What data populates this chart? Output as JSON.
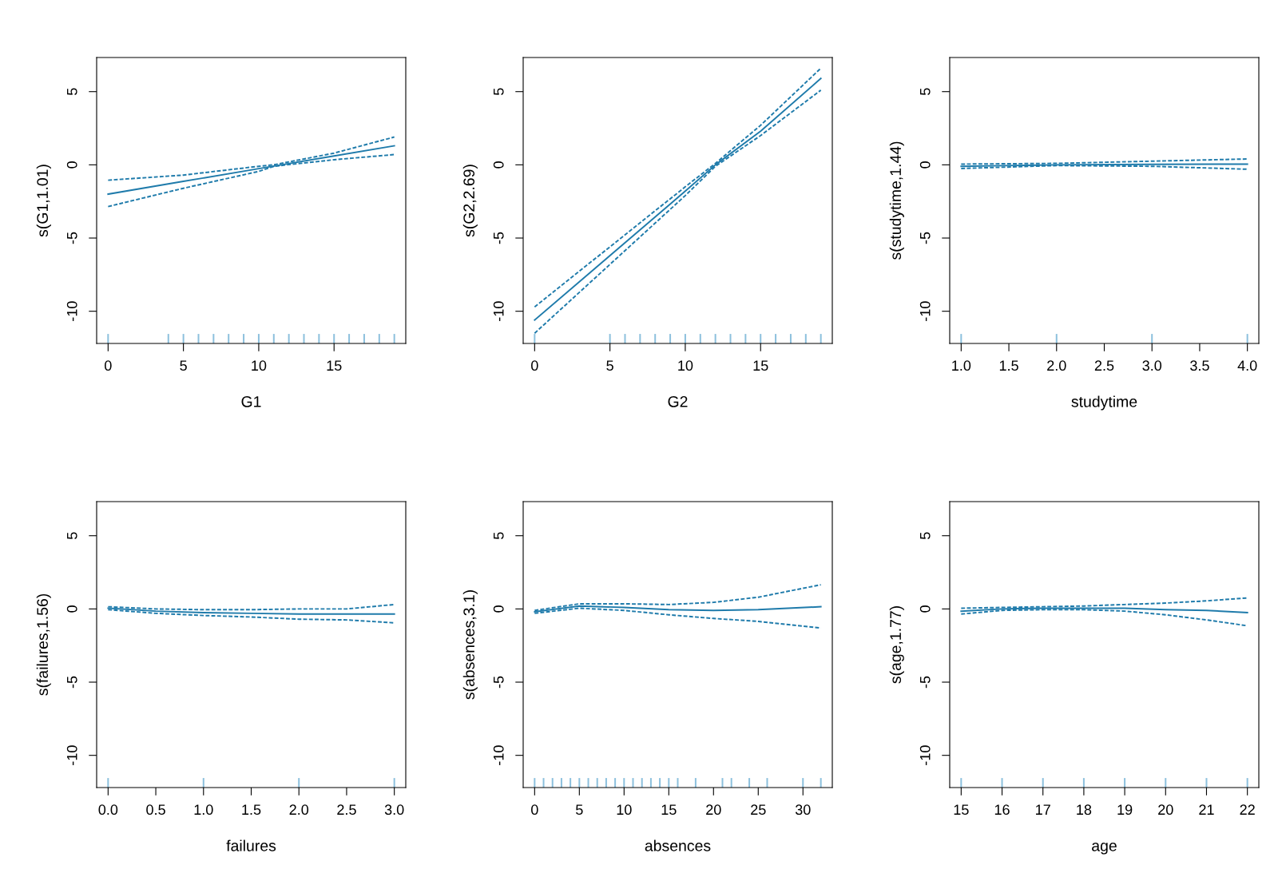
{
  "chart_data": [
    {
      "type": "line",
      "xlabel": "G1",
      "ylabel": "s(G1,1.01)",
      "xlim": [
        -0.76,
        19.76
      ],
      "ylim": [
        -12.2,
        7.33
      ],
      "xticks": [
        0,
        5,
        10,
        15
      ],
      "yticks": [
        -10,
        -5,
        0,
        5
      ],
      "grid": false,
      "legend": false,
      "series": [
        {
          "color": "#1f7bab",
          "line_style": "solid",
          "x": [
            0,
            5,
            10,
            15,
            19
          ],
          "values": [
            -2.0,
            -1.13,
            -0.26,
            0.61,
            1.3
          ]
        },
        {
          "color": "#1f7bab",
          "line_style": "dashed",
          "x": [
            0,
            5,
            10,
            11,
            15,
            19
          ],
          "values": [
            -1.05,
            -0.7,
            -0.1,
            0.0,
            0.8,
            1.9
          ]
        },
        {
          "color": "#1f7bab",
          "line_style": "dashed",
          "x": [
            0,
            5,
            10,
            11,
            15,
            19
          ],
          "values": [
            -2.85,
            -1.6,
            -0.45,
            -0.1,
            0.35,
            0.7
          ]
        },
        {
          "type": "bar",
          "color": "#8cc0dd",
          "x": [
            0,
            4,
            5,
            6,
            7,
            8,
            9,
            10,
            11,
            12,
            13,
            14,
            15,
            16,
            17,
            18,
            19
          ],
          "base": [
            -12.2,
            -12.2,
            -12.2,
            -12.2,
            -12.2,
            -12.2,
            -12.2,
            -12.2,
            -12.2,
            -12.2,
            -12.2,
            -12.2,
            -12.2,
            -12.2,
            -12.2,
            -12.2,
            -12.2
          ],
          "values": [
            0.65,
            0.65,
            0.65,
            0.65,
            0.65,
            0.65,
            0.65,
            0.65,
            0.65,
            0.65,
            0.65,
            0.65,
            0.65,
            0.65,
            0.65,
            0.65,
            0.65
          ]
        }
      ]
    },
    {
      "type": "line",
      "xlabel": "G2",
      "ylabel": "s(G2,2.69)",
      "xlim": [
        -0.76,
        19.76
      ],
      "ylim": [
        -12.2,
        7.33
      ],
      "xticks": [
        0,
        5,
        10,
        15
      ],
      "yticks": [
        -10,
        -5,
        0,
        5
      ],
      "grid": false,
      "legend": false,
      "series": [
        {
          "color": "#1f7bab",
          "line_style": "solid",
          "x": [
            0,
            5,
            10,
            12,
            15,
            19
          ],
          "values": [
            -10.6,
            -6.2,
            -1.8,
            0.0,
            2.3,
            5.9
          ]
        },
        {
          "color": "#1f7bab",
          "line_style": "dashed",
          "x": [
            0,
            5,
            10,
            12,
            15,
            19
          ],
          "values": [
            -9.7,
            -5.6,
            -1.5,
            0.1,
            2.7,
            6.6
          ]
        },
        {
          "color": "#1f7bab",
          "line_style": "dashed",
          "x": [
            0,
            5,
            10,
            12,
            15,
            19
          ],
          "values": [
            -11.5,
            -6.8,
            -2.1,
            -0.1,
            2.0,
            5.1
          ]
        },
        {
          "type": "bar",
          "color": "#8cc0dd",
          "x": [
            0,
            5,
            6,
            7,
            8,
            9,
            10,
            11,
            12,
            13,
            14,
            15,
            16,
            17,
            18,
            19
          ],
          "base": [
            -12.2,
            -12.2,
            -12.2,
            -12.2,
            -12.2,
            -12.2,
            -12.2,
            -12.2,
            -12.2,
            -12.2,
            -12.2,
            -12.2,
            -12.2,
            -12.2,
            -12.2,
            -12.2
          ],
          "values": [
            0.65,
            0.65,
            0.65,
            0.65,
            0.65,
            0.65,
            0.65,
            0.65,
            0.65,
            0.65,
            0.65,
            0.65,
            0.65,
            0.65,
            0.65,
            0.65
          ]
        }
      ]
    },
    {
      "type": "line",
      "xlabel": "studytime",
      "ylabel": "s(studytime,1.44)",
      "xlim": [
        0.88,
        4.12
      ],
      "ylim": [
        -12.2,
        7.33
      ],
      "xticks": [
        {
          "value": 1,
          "label": "1.0"
        },
        1.5,
        {
          "value": 2,
          "label": "2.0"
        },
        2.5,
        {
          "value": 3,
          "label": "3.0"
        },
        3.5,
        {
          "value": 4,
          "label": "4.0"
        }
      ],
      "yticks": [
        -10,
        -5,
        0,
        5
      ],
      "grid": false,
      "legend": false,
      "series": [
        {
          "color": "#1f7bab",
          "line_style": "solid",
          "x": [
            1,
            2,
            3,
            4
          ],
          "values": [
            -0.1,
            0.0,
            0.03,
            0.05
          ]
        },
        {
          "color": "#1f7bab",
          "line_style": "dashed",
          "x": [
            1,
            2,
            3,
            4
          ],
          "values": [
            0.05,
            0.1,
            0.25,
            0.4
          ]
        },
        {
          "color": "#1f7bab",
          "line_style": "dashed",
          "x": [
            1,
            2,
            3,
            4
          ],
          "values": [
            -0.25,
            -0.05,
            -0.1,
            -0.3
          ]
        },
        {
          "type": "bar",
          "color": "#8cc0dd",
          "x": [
            1,
            2,
            3,
            4
          ],
          "base": [
            -12.2,
            -12.2,
            -12.2,
            -12.2
          ],
          "values": [
            0.65,
            0.65,
            0.65,
            0.65
          ]
        }
      ]
    },
    {
      "type": "line",
      "xlabel": "failures",
      "ylabel": "s(failures,1.56)",
      "xlim": [
        -0.12,
        3.12
      ],
      "ylim": [
        -12.2,
        7.33
      ],
      "xticks": [
        {
          "value": 0,
          "label": "0.0"
        },
        0.5,
        {
          "value": 1,
          "label": "1.0"
        },
        1.5,
        {
          "value": 2,
          "label": "2.0"
        },
        2.5,
        {
          "value": 3,
          "label": "3.0"
        }
      ],
      "yticks": [
        -10,
        -5,
        0,
        5
      ],
      "grid": false,
      "legend": false,
      "series": [
        {
          "color": "#1f7bab",
          "line_style": "solid",
          "x": [
            0,
            0.5,
            1,
            1.5,
            2,
            2.5,
            3
          ],
          "values": [
            0.05,
            -0.15,
            -0.25,
            -0.3,
            -0.35,
            -0.35,
            -0.35
          ]
        },
        {
          "color": "#1f7bab",
          "line_style": "dashed",
          "x": [
            0,
            0.5,
            1,
            1.5,
            2,
            2.5,
            3
          ],
          "values": [
            0.15,
            0.0,
            -0.05,
            -0.05,
            0.0,
            0.0,
            0.3
          ]
        },
        {
          "color": "#1f7bab",
          "line_style": "dashed",
          "x": [
            0,
            0.5,
            1,
            1.5,
            2,
            2.5,
            3
          ],
          "values": [
            -0.05,
            -0.3,
            -0.45,
            -0.55,
            -0.7,
            -0.75,
            -0.95
          ]
        },
        {
          "type": "bar",
          "color": "#8cc0dd",
          "x": [
            0,
            1,
            2,
            3
          ],
          "base": [
            -12.2,
            -12.2,
            -12.2,
            -12.2
          ],
          "values": [
            0.65,
            0.65,
            0.65,
            0.65
          ]
        }
      ]
    },
    {
      "type": "line",
      "xlabel": "absences",
      "ylabel": "s(absences,3.1)",
      "xlim": [
        -1.28,
        33.28
      ],
      "ylim": [
        -12.2,
        7.33
      ],
      "xticks": [
        0,
        5,
        10,
        15,
        20,
        25,
        30
      ],
      "yticks": [
        -10,
        -5,
        0,
        5
      ],
      "grid": false,
      "legend": false,
      "series": [
        {
          "color": "#1f7bab",
          "line_style": "solid",
          "x": [
            0,
            5,
            10,
            15,
            20,
            25,
            32
          ],
          "values": [
            -0.2,
            0.2,
            0.1,
            -0.05,
            -0.1,
            -0.05,
            0.15
          ]
        },
        {
          "color": "#1f7bab",
          "line_style": "dashed",
          "x": [
            0,
            5,
            10,
            15,
            20,
            25,
            32
          ],
          "values": [
            -0.1,
            0.35,
            0.35,
            0.3,
            0.45,
            0.8,
            1.65
          ]
        },
        {
          "color": "#1f7bab",
          "line_style": "dashed",
          "x": [
            0,
            5,
            10,
            15,
            20,
            25,
            32
          ],
          "values": [
            -0.3,
            0.05,
            -0.1,
            -0.4,
            -0.65,
            -0.85,
            -1.3
          ]
        },
        {
          "type": "bar",
          "color": "#8cc0dd",
          "x": [
            0,
            1,
            2,
            3,
            4,
            5,
            6,
            7,
            8,
            9,
            10,
            11,
            12,
            13,
            14,
            15,
            16,
            18,
            21,
            22,
            24,
            26,
            30,
            32
          ],
          "base": [
            -12.2,
            -12.2,
            -12.2,
            -12.2,
            -12.2,
            -12.2,
            -12.2,
            -12.2,
            -12.2,
            -12.2,
            -12.2,
            -12.2,
            -12.2,
            -12.2,
            -12.2,
            -12.2,
            -12.2,
            -12.2,
            -12.2,
            -12.2,
            -12.2,
            -12.2,
            -12.2,
            -12.2
          ],
          "values": [
            0.65,
            0.65,
            0.65,
            0.65,
            0.65,
            0.65,
            0.65,
            0.65,
            0.65,
            0.65,
            0.65,
            0.65,
            0.65,
            0.65,
            0.65,
            0.65,
            0.65,
            0.65,
            0.65,
            0.65,
            0.65,
            0.65,
            0.65,
            0.65
          ]
        }
      ]
    },
    {
      "type": "line",
      "xlabel": "age",
      "ylabel": "s(age,1.77)",
      "xlim": [
        14.72,
        22.28
      ],
      "ylim": [
        -12.2,
        7.33
      ],
      "xticks": [
        15,
        16,
        17,
        18,
        19,
        20,
        21,
        22
      ],
      "yticks": [
        -10,
        -5,
        0,
        5
      ],
      "grid": false,
      "legend": false,
      "series": [
        {
          "color": "#1f7bab",
          "line_style": "solid",
          "x": [
            15,
            16,
            17,
            18,
            19,
            20,
            21,
            22
          ],
          "values": [
            -0.15,
            0.0,
            0.05,
            0.05,
            0.05,
            -0.05,
            -0.1,
            -0.25
          ]
        },
        {
          "color": "#1f7bab",
          "line_style": "dashed",
          "x": [
            15,
            16,
            17,
            18,
            19,
            20,
            21,
            22
          ],
          "values": [
            0.05,
            0.1,
            0.15,
            0.2,
            0.3,
            0.4,
            0.55,
            0.75
          ]
        },
        {
          "color": "#1f7bab",
          "line_style": "dashed",
          "x": [
            15,
            16,
            17,
            18,
            19,
            20,
            21,
            22
          ],
          "values": [
            -0.35,
            -0.1,
            -0.05,
            -0.05,
            -0.15,
            -0.4,
            -0.75,
            -1.15
          ]
        },
        {
          "type": "bar",
          "color": "#8cc0dd",
          "x": [
            15,
            16,
            17,
            18,
            19,
            20,
            21,
            22
          ],
          "base": [
            -12.2,
            -12.2,
            -12.2,
            -12.2,
            -12.2,
            -12.2,
            -12.2,
            -12.2
          ],
          "values": [
            0.65,
            0.65,
            0.65,
            0.65,
            0.65,
            0.65,
            0.65,
            0.65
          ]
        }
      ]
    }
  ]
}
